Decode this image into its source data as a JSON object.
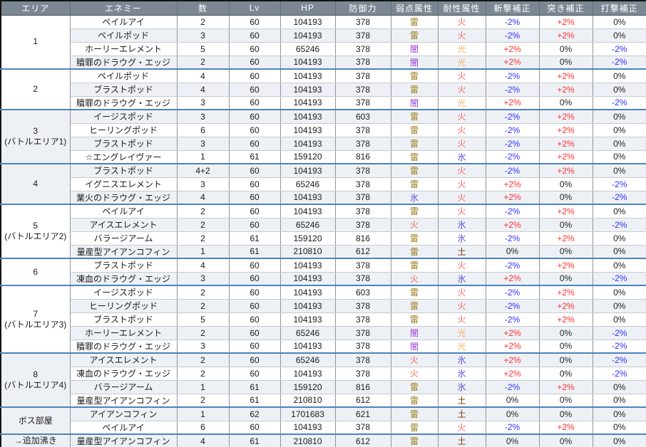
{
  "table": {
    "columns": [
      {
        "key": "area",
        "label": "エリア"
      },
      {
        "key": "enemy",
        "label": "エネミー"
      },
      {
        "key": "count",
        "label": "数"
      },
      {
        "key": "lv",
        "label": "Lv"
      },
      {
        "key": "hp",
        "label": "HP"
      },
      {
        "key": "def",
        "label": "防御力"
      },
      {
        "key": "weak",
        "label": "弱点属性"
      },
      {
        "key": "resist",
        "label": "耐性属性"
      },
      {
        "key": "slash",
        "label": "斬撃補正"
      },
      {
        "key": "thrust",
        "label": "突き補正"
      },
      {
        "key": "strike",
        "label": "打撃補正"
      }
    ],
    "groups": [
      {
        "area": "1",
        "rows": [
          [
            "ペイルアイ",
            "2",
            "60",
            "104193",
            "378",
            "雷",
            "火",
            "-2%",
            "+2%",
            "0%"
          ],
          [
            "ペイルポッド",
            "3",
            "60",
            "104193",
            "378",
            "雷",
            "火",
            "-2%",
            "+2%",
            "0%"
          ],
          [
            "ホーリーエレメント",
            "5",
            "60",
            "65246",
            "378",
            "闇",
            "光",
            "+2%",
            "0%",
            "-2%"
          ],
          [
            "贖罪のドラウグ・エッジ",
            "2",
            "60",
            "104193",
            "378",
            "闇",
            "光",
            "+2%",
            "0%",
            "-2%"
          ]
        ]
      },
      {
        "area": "2",
        "rows": [
          [
            "ペイルポッド",
            "4",
            "60",
            "104193",
            "378",
            "雷",
            "火",
            "-2%",
            "+2%",
            "0%"
          ],
          [
            "ブラストポッド",
            "4",
            "60",
            "104193",
            "378",
            "雷",
            "火",
            "-2%",
            "+2%",
            "0%"
          ],
          [
            "贖罪のドラウグ・エッジ",
            "3",
            "60",
            "104193",
            "378",
            "闇",
            "光",
            "+2%",
            "0%",
            "-2%"
          ]
        ]
      },
      {
        "area": "3\n(バトルエリア1)",
        "rows": [
          [
            "イージスポッド",
            "3",
            "60",
            "104193",
            "603",
            "雷",
            "火",
            "-2%",
            "+2%",
            "0%"
          ],
          [
            "ヒーリングポッド",
            "6",
            "60",
            "104193",
            "378",
            "雷",
            "火",
            "-2%",
            "+2%",
            "0%"
          ],
          [
            "ブラストポッド",
            "3",
            "60",
            "104193",
            "378",
            "雷",
            "火",
            "-2%",
            "+2%",
            "0%"
          ],
          [
            "☆エングレイヴァー",
            "1",
            "61",
            "159120",
            "816",
            "雷",
            "氷",
            "-2%",
            "+2%",
            "0%"
          ]
        ]
      },
      {
        "area": "4",
        "rows": [
          [
            "ブラストポッド",
            "4+2",
            "60",
            "104193",
            "378",
            "雷",
            "火",
            "-2%",
            "+2%",
            "0%"
          ],
          [
            "イグニスエレメント",
            "3",
            "60",
            "65246",
            "378",
            "雷",
            "火",
            "+2%",
            "0%",
            "-2%"
          ],
          [
            "業火のドラウグ・エッジ",
            "4",
            "60",
            "104193",
            "378",
            "氷",
            "火",
            "+2%",
            "0%",
            "-2%"
          ]
        ]
      },
      {
        "area": "5\n(バトルエリア2)",
        "rows": [
          [
            "ペイルアイ",
            "2",
            "60",
            "104193",
            "378",
            "雷",
            "火",
            "-2%",
            "+2%",
            "0%"
          ],
          [
            "アイスエレメント",
            "2",
            "60",
            "65246",
            "378",
            "火",
            "氷",
            "+2%",
            "0%",
            "-2%"
          ],
          [
            "バラージアーム",
            "2",
            "61",
            "159120",
            "816",
            "雷",
            "氷",
            "-2%",
            "+2%",
            "0%"
          ],
          [
            "量産型アイアンコフィン",
            "1",
            "61",
            "210810",
            "612",
            "雷",
            "土",
            "0%",
            "0%",
            "0%"
          ]
        ]
      },
      {
        "area": "6",
        "rows": [
          [
            "ブラストポッド",
            "4",
            "60",
            "104193",
            "378",
            "雷",
            "火",
            "-2%",
            "+2%",
            "0%"
          ],
          [
            "凍血のドラウグ・エッジ",
            "3",
            "60",
            "104193",
            "378",
            "火",
            "氷",
            "+2%",
            "0%",
            "-2%"
          ]
        ]
      },
      {
        "area": "7\n(バトルエリア3)",
        "rows": [
          [
            "イージスポッド",
            "2",
            "60",
            "104193",
            "603",
            "雷",
            "火",
            "-2%",
            "+2%",
            "0%"
          ],
          [
            "ヒーリングポッド",
            "2",
            "60",
            "104193",
            "378",
            "雷",
            "火",
            "-2%",
            "+2%",
            "0%"
          ],
          [
            "ブラストポッド",
            "5",
            "60",
            "104193",
            "378",
            "雷",
            "火",
            "-2%",
            "+2%",
            "0%"
          ],
          [
            "ホーリーエレメント",
            "2",
            "60",
            "65246",
            "378",
            "闇",
            "光",
            "+2%",
            "0%",
            "-2%"
          ],
          [
            "贖罪のドラウグ・エッジ",
            "3",
            "60",
            "104193",
            "378",
            "闇",
            "光",
            "+2%",
            "0%",
            "-2%"
          ]
        ]
      },
      {
        "area": "8\n(バトルエリア4)",
        "rows": [
          [
            "アイスエレメント",
            "2",
            "60",
            "65246",
            "378",
            "火",
            "氷",
            "+2%",
            "0%",
            "-2%"
          ],
          [
            "凍血のドラウグ・エッジ",
            "2",
            "60",
            "104193",
            "378",
            "火",
            "氷",
            "+2%",
            "0%",
            "-2%"
          ],
          [
            "バラージアーム",
            "1",
            "61",
            "159120",
            "816",
            "雷",
            "氷",
            "-2%",
            "+2%",
            "0%"
          ],
          [
            "量産型アイアンコフィン",
            "2",
            "61",
            "210810",
            "612",
            "雷",
            "土",
            "0%",
            "0%",
            "0%"
          ]
        ]
      },
      {
        "area": "ボス部屋",
        "rows": [
          [
            "アイアンコフィン",
            "1",
            "62",
            "1701683",
            "621",
            "雷",
            "土",
            "0%",
            "0%",
            "0%"
          ],
          [
            "ペイルアイ",
            "6",
            "60",
            "104193",
            "378",
            "雷",
            "火",
            "-2%",
            "+2%",
            "0%"
          ]
        ]
      },
      {
        "area": "→追加沸き",
        "rows": [
          [
            "量産型アイアンコフィン",
            "4",
            "61",
            "210810",
            "612",
            "雷",
            "土",
            "0%",
            "0%",
            "0%"
          ]
        ]
      }
    ]
  },
  "colors": {
    "header_bg": "#7b8894",
    "header_text": "#ffffff",
    "stripe_bg": "#edf1f6",
    "group_divider": "#4f81bd",
    "elements": {
      "雷": "#9b7c16",
      "火": "#f8655b",
      "光": "#edb36a",
      "闇": "#9a3fd6",
      "氷": "#5b51dd",
      "土": "#7e3a00"
    },
    "modifiers": {
      "plus": "#ff2f2f",
      "minus": "#2f2fff",
      "zero": "#1f1f1f"
    }
  }
}
